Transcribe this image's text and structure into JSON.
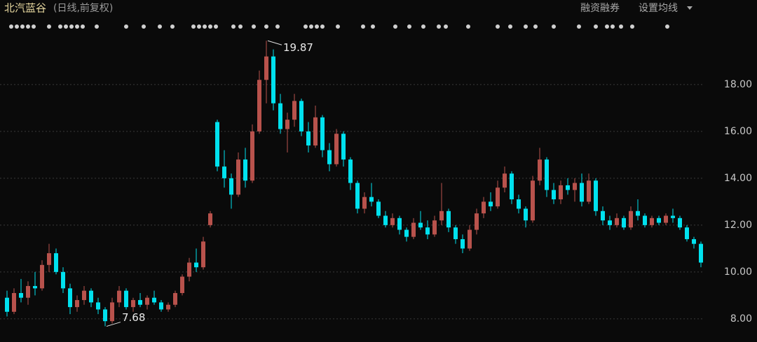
{
  "header": {
    "title": "北汽蓝谷",
    "subtitle": "(日线,前复权)",
    "menu": [
      "融资融券",
      "设置均线"
    ]
  },
  "chart_data": {
    "type": "candlestick",
    "up_color": "#b8524c",
    "down_color": "#00e1ee",
    "grid": true,
    "ylim": [
      7.01,
      21.61
    ],
    "yticks": [
      {
        "value": 8,
        "label": "8.00"
      },
      {
        "value": 10,
        "label": "10.00"
      },
      {
        "value": 12,
        "label": "12.00"
      },
      {
        "value": 14,
        "label": "14.00"
      },
      {
        "value": 16,
        "label": "16.00"
      },
      {
        "value": 18,
        "label": "18.00"
      }
    ],
    "max_label": 19.87,
    "min_label": 7.68,
    "candles": [
      [
        8.9,
        9.2,
        8.1,
        8.3
      ],
      [
        8.3,
        9.3,
        8.2,
        9.1
      ],
      [
        9.1,
        9.7,
        8.7,
        8.9
      ],
      [
        8.9,
        9.6,
        8.6,
        9.4
      ],
      [
        9.4,
        10.0,
        9.0,
        9.3
      ],
      [
        9.3,
        10.5,
        9.2,
        10.3
      ],
      [
        10.3,
        11.2,
        10.0,
        10.8
      ],
      [
        10.8,
        11.0,
        9.9,
        10.0
      ],
      [
        10.0,
        10.2,
        9.1,
        9.3
      ],
      [
        9.3,
        9.5,
        8.2,
        8.5
      ],
      [
        8.5,
        9.0,
        8.3,
        8.8
      ],
      [
        8.8,
        9.4,
        8.6,
        9.2
      ],
      [
        9.2,
        9.3,
        8.5,
        8.7
      ],
      [
        8.7,
        8.9,
        8.2,
        8.4
      ],
      [
        8.4,
        8.5,
        7.68,
        7.9
      ],
      [
        7.9,
        8.9,
        7.8,
        8.7
      ],
      [
        8.7,
        9.4,
        8.5,
        9.2
      ],
      [
        9.2,
        9.3,
        8.4,
        8.5
      ],
      [
        8.5,
        8.9,
        8.3,
        8.8
      ],
      [
        8.8,
        9.1,
        8.5,
        8.6
      ],
      [
        8.6,
        9.0,
        8.4,
        8.9
      ],
      [
        8.9,
        9.2,
        8.6,
        8.7
      ],
      [
        8.7,
        8.8,
        8.3,
        8.4
      ],
      [
        8.4,
        8.7,
        8.3,
        8.6
      ],
      [
        8.6,
        9.2,
        8.5,
        9.1
      ],
      [
        9.1,
        9.9,
        9.0,
        9.8
      ],
      [
        9.8,
        10.6,
        9.6,
        10.4
      ],
      [
        10.4,
        11.0,
        10.0,
        10.2
      ],
      [
        10.2,
        11.5,
        10.1,
        11.3
      ],
      [
        12.0,
        12.6,
        11.9,
        12.5
      ],
      [
        16.4,
        16.5,
        14.3,
        14.5
      ],
      [
        14.5,
        15.2,
        13.6,
        14.0
      ],
      [
        14.0,
        14.2,
        12.7,
        13.3
      ],
      [
        13.3,
        15.1,
        13.2,
        14.8
      ],
      [
        14.8,
        15.3,
        13.6,
        13.9
      ],
      [
        13.9,
        16.3,
        13.8,
        16.0
      ],
      [
        16.0,
        18.6,
        15.9,
        18.2
      ],
      [
        18.2,
        19.87,
        17.2,
        19.2
      ],
      [
        19.2,
        19.5,
        16.9,
        17.2
      ],
      [
        17.2,
        17.6,
        15.9,
        16.1
      ],
      [
        16.1,
        16.8,
        15.1,
        16.5
      ],
      [
        16.5,
        17.6,
        16.2,
        17.3
      ],
      [
        17.3,
        17.4,
        15.8,
        16.0
      ],
      [
        16.0,
        16.4,
        15.1,
        15.4
      ],
      [
        15.4,
        17.1,
        15.3,
        16.6
      ],
      [
        16.6,
        16.7,
        14.9,
        15.2
      ],
      [
        15.2,
        15.5,
        14.3,
        14.6
      ],
      [
        14.6,
        16.1,
        14.5,
        15.9
      ],
      [
        15.9,
        16.0,
        14.5,
        14.8
      ],
      [
        14.8,
        14.9,
        13.5,
        13.8
      ],
      [
        13.8,
        13.9,
        12.5,
        12.7
      ],
      [
        12.7,
        13.4,
        12.5,
        13.2
      ],
      [
        13.2,
        13.8,
        12.8,
        13.0
      ],
      [
        13.0,
        13.1,
        12.3,
        12.4
      ],
      [
        12.4,
        12.6,
        11.9,
        12.0
      ],
      [
        12.0,
        12.5,
        11.9,
        12.3
      ],
      [
        12.3,
        12.4,
        11.6,
        11.8
      ],
      [
        11.8,
        11.9,
        11.3,
        11.5
      ],
      [
        11.5,
        12.3,
        11.4,
        12.1
      ],
      [
        12.1,
        12.6,
        11.8,
        11.9
      ],
      [
        11.9,
        12.2,
        11.4,
        11.6
      ],
      [
        11.6,
        12.4,
        11.5,
        12.2
      ],
      [
        12.2,
        13.8,
        12.0,
        12.6
      ],
      [
        12.6,
        12.7,
        11.7,
        11.9
      ],
      [
        11.9,
        12.0,
        11.2,
        11.4
      ],
      [
        11.4,
        11.6,
        10.8,
        11.0
      ],
      [
        11.0,
        12.0,
        10.9,
        11.8
      ],
      [
        11.8,
        12.7,
        11.6,
        12.5
      ],
      [
        12.5,
        13.2,
        12.3,
        13.0
      ],
      [
        13.0,
        13.4,
        12.6,
        12.8
      ],
      [
        12.8,
        13.9,
        12.7,
        13.6
      ],
      [
        13.6,
        14.5,
        13.4,
        14.2
      ],
      [
        14.2,
        14.3,
        12.9,
        13.1
      ],
      [
        13.1,
        13.3,
        12.5,
        12.7
      ],
      [
        12.7,
        12.8,
        11.9,
        12.2
      ],
      [
        12.2,
        14.1,
        12.1,
        13.9
      ],
      [
        13.9,
        15.3,
        13.7,
        14.8
      ],
      [
        14.8,
        14.9,
        13.2,
        13.5
      ],
      [
        13.5,
        13.8,
        12.9,
        13.1
      ],
      [
        13.1,
        13.9,
        12.9,
        13.7
      ],
      [
        13.7,
        14.0,
        13.3,
        13.5
      ],
      [
        13.5,
        14.0,
        13.0,
        13.8
      ],
      [
        13.8,
        14.2,
        12.8,
        13.0
      ],
      [
        13.0,
        14.2,
        12.9,
        13.9
      ],
      [
        13.9,
        14.0,
        12.4,
        12.6
      ],
      [
        12.6,
        12.8,
        12.0,
        12.2
      ],
      [
        12.2,
        12.4,
        11.8,
        12.0
      ],
      [
        12.0,
        12.5,
        11.9,
        12.3
      ],
      [
        12.3,
        12.4,
        11.8,
        11.9
      ],
      [
        11.9,
        12.8,
        11.8,
        12.6
      ],
      [
        12.6,
        13.1,
        12.2,
        12.4
      ],
      [
        12.4,
        12.5,
        11.9,
        12.0
      ],
      [
        12.0,
        12.4,
        11.9,
        12.3
      ],
      [
        12.3,
        12.4,
        12.0,
        12.1
      ],
      [
        12.1,
        12.5,
        12.0,
        12.4
      ],
      [
        12.4,
        12.7,
        12.1,
        12.3
      ],
      [
        12.3,
        12.4,
        11.8,
        11.9
      ],
      [
        11.9,
        12.0,
        11.3,
        11.4
      ],
      [
        11.4,
        11.5,
        11.0,
        11.2
      ],
      [
        11.2,
        11.3,
        10.2,
        10.4
      ]
    ]
  }
}
